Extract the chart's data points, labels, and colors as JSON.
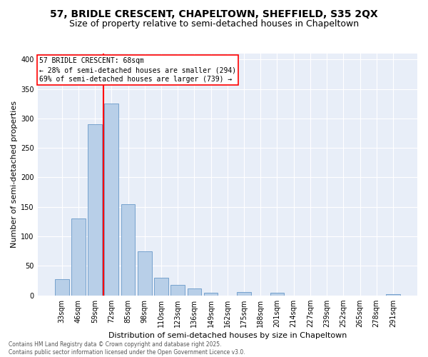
{
  "title1": "57, BRIDLE CRESCENT, CHAPELTOWN, SHEFFIELD, S35 2QX",
  "title2": "Size of property relative to semi-detached houses in Chapeltown",
  "xlabel": "Distribution of semi-detached houses by size in Chapeltown",
  "ylabel": "Number of semi-detached properties",
  "categories": [
    "33sqm",
    "46sqm",
    "59sqm",
    "72sqm",
    "85sqm",
    "98sqm",
    "110sqm",
    "123sqm",
    "136sqm",
    "149sqm",
    "162sqm",
    "175sqm",
    "188sqm",
    "201sqm",
    "214sqm",
    "227sqm",
    "239sqm",
    "252sqm",
    "265sqm",
    "278sqm",
    "291sqm"
  ],
  "values": [
    28,
    130,
    290,
    325,
    155,
    75,
    30,
    18,
    12,
    5,
    0,
    6,
    0,
    4,
    0,
    0,
    0,
    0,
    0,
    0,
    2
  ],
  "bar_color": "#b8cfe8",
  "bar_edge_color": "#6898c8",
  "vline_x": 2.5,
  "vline_color": "red",
  "property_label": "57 BRIDLE CRESCENT: 68sqm",
  "annotation1": "← 28% of semi-detached houses are smaller (294)",
  "annotation2": "69% of semi-detached houses are larger (739) →",
  "annotation_box_color": "white",
  "annotation_box_edge": "red",
  "footnote1": "Contains HM Land Registry data © Crown copyright and database right 2025.",
  "footnote2": "Contains public sector information licensed under the Open Government Licence v3.0.",
  "ylim": [
    0,
    410
  ],
  "yticks": [
    0,
    50,
    100,
    150,
    200,
    250,
    300,
    350,
    400
  ],
  "fig_bg": "#ffffff",
  "plot_bg": "#e8eef8",
  "grid_color": "#ffffff",
  "title_fontsize": 10,
  "subtitle_fontsize": 9,
  "annotation_fontsize": 7,
  "axis_label_fontsize": 8,
  "tick_fontsize": 7
}
